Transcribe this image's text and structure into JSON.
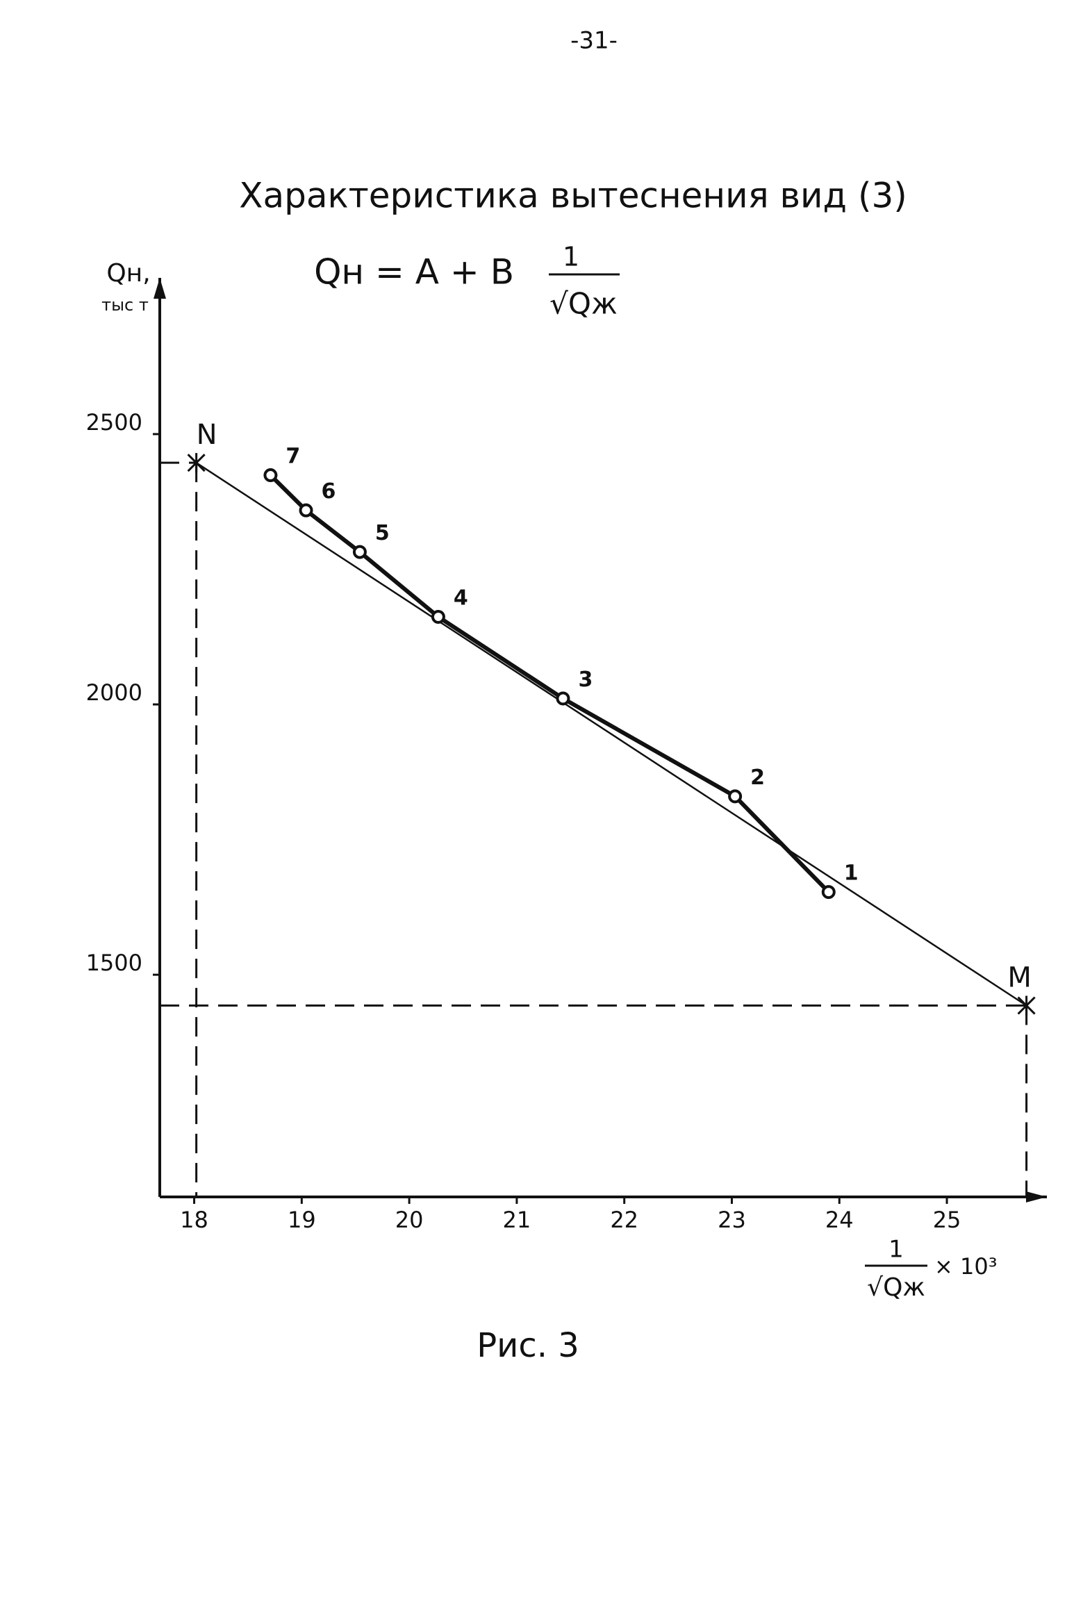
{
  "page_number": "-31-",
  "chart_data": {
    "type": "scatter",
    "title": "Характеристика вытеснения вид (3)",
    "formula": {
      "text": "Qн = A + B",
      "fraction": [
        "1",
        "√Qж"
      ]
    },
    "ylabel": [
      "Qн,",
      "тыс т"
    ],
    "xlabel": {
      "fraction": [
        "1",
        "√Qж"
      ],
      "factor": "× 10³"
    },
    "points": {
      "labels": [
        "1",
        "2",
        "3",
        "4",
        "5",
        "6",
        "7"
      ],
      "x": [
        23.9,
        23.03,
        21.43,
        20.27,
        19.54,
        19.04,
        18.71
      ],
      "y": [
        1653,
        1830,
        2011,
        2162,
        2282,
        2359,
        2424
      ]
    },
    "fit_line": {
      "labels": [
        "N",
        "M"
      ],
      "x": [
        18.02,
        25.74
      ],
      "y": [
        2447,
        1443
      ]
    },
    "xlim": [
      17.68,
      25.93
    ],
    "ylim": [
      1089,
      2789
    ],
    "xticks": [
      18,
      19,
      20,
      21,
      22,
      23,
      24,
      25
    ],
    "yticks": [
      1500,
      2000,
      2500
    ],
    "color": "#111111"
  },
  "caption": "Рис. 3"
}
